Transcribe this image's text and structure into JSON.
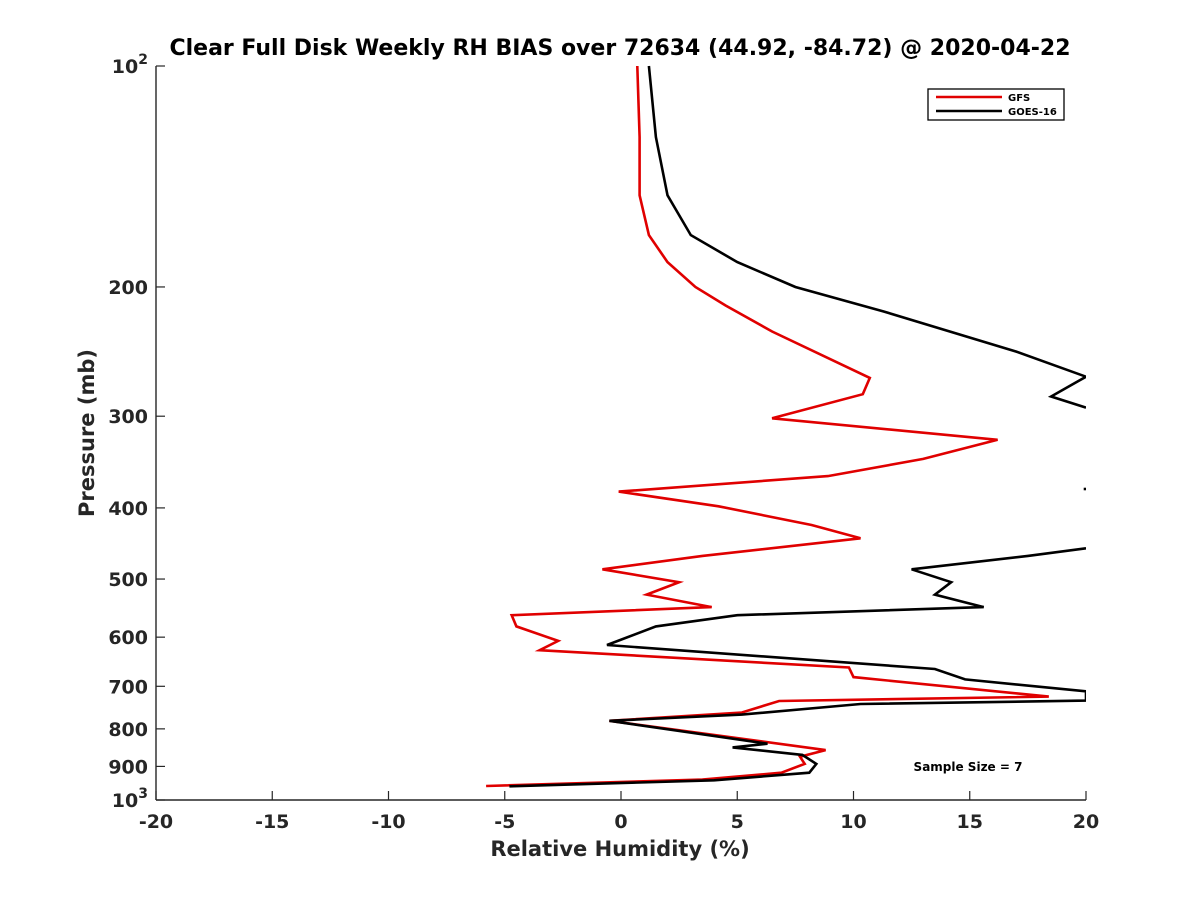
{
  "chart_data": {
    "type": "line",
    "title": "Clear Full Disk Weekly RH BIAS over 72634 (44.92, -84.72) @ 2020-04-22",
    "xlabel": "Relative Humidity (%)",
    "ylabel": "Pressure (mb)",
    "xlim": [
      -20,
      20
    ],
    "ylim": [
      100,
      1000
    ],
    "yscale": "log",
    "y_reversed": true,
    "x_ticks": [
      -20,
      -15,
      -10,
      -5,
      0,
      5,
      10,
      15,
      20
    ],
    "x_tick_labels": [
      "-20",
      "-15",
      "-10",
      "-5",
      "0",
      "5",
      "10",
      "15",
      "20"
    ],
    "y_ticks": [
      100,
      200,
      300,
      400,
      500,
      600,
      700,
      800,
      900,
      1000
    ],
    "y_tick_labels": [
      {
        "base": "10",
        "exp": "2"
      },
      {
        "base": "200",
        "exp": ""
      },
      {
        "base": "300",
        "exp": ""
      },
      {
        "base": "400",
        "exp": ""
      },
      {
        "base": "500",
        "exp": ""
      },
      {
        "base": "600",
        "exp": ""
      },
      {
        "base": "700",
        "exp": ""
      },
      {
        "base": "800",
        "exp": ""
      },
      {
        "base": "900",
        "exp": ""
      },
      {
        "base": "10",
        "exp": "3"
      }
    ],
    "legend_position": "top-right",
    "grid": false,
    "annotation": "Sample Size = 7",
    "series": [
      {
        "name": "GFS",
        "color": "#e00000",
        "points": [
          [
            0.7,
            100
          ],
          [
            0.8,
            125
          ],
          [
            0.8,
            150
          ],
          [
            1.2,
            170
          ],
          [
            2.0,
            185
          ],
          [
            3.2,
            200
          ],
          [
            4.5,
            212
          ],
          [
            6.5,
            230
          ],
          [
            10.7,
            266
          ],
          [
            10.4,
            280
          ],
          [
            6.5,
            302
          ],
          [
            16.2,
            323
          ],
          [
            13.0,
            343
          ],
          [
            8.9,
            362
          ],
          [
            -0.1,
            380
          ],
          [
            4.2,
            398
          ],
          [
            8.2,
            422
          ],
          [
            10.3,
            440
          ],
          [
            3.5,
            465
          ],
          [
            -0.8,
            485
          ],
          [
            2.5,
            505
          ],
          [
            1.1,
            525
          ],
          [
            3.9,
            546
          ],
          [
            -4.7,
            560
          ],
          [
            -4.5,
            580
          ],
          [
            -2.7,
            607
          ],
          [
            -3.5,
            625
          ],
          [
            9.8,
            660
          ],
          [
            10.0,
            680
          ],
          [
            18.4,
            723
          ],
          [
            6.8,
            733
          ],
          [
            5.2,
            760
          ],
          [
            -0.5,
            780
          ],
          [
            8.8,
            855
          ],
          [
            7.7,
            873
          ],
          [
            7.9,
            893
          ],
          [
            6.9,
            918
          ],
          [
            3.5,
            938
          ],
          [
            -5.8,
            957
          ]
        ]
      },
      {
        "name": "GOES-16",
        "color": "#000000",
        "segments": [
          [
            [
              1.2,
              100
            ],
            [
              1.5,
              125
            ],
            [
              2.0,
              150
            ],
            [
              3.0,
              170
            ],
            [
              5.0,
              185
            ],
            [
              7.5,
              200
            ],
            [
              11.3,
              216
            ],
            [
              17.0,
              245
            ],
            [
              20.0,
              265
            ],
            [
              18.5,
              282
            ],
            [
              20.0,
              292
            ]
          ],
          [
            [
              19.9,
              377
            ],
            [
              20.0,
              377
            ]
          ],
          [
            [
              20.0,
              454
            ],
            [
              17.5,
              465
            ],
            [
              12.5,
              485
            ],
            [
              14.2,
              505
            ],
            [
              13.5,
              525
            ],
            [
              15.6,
              546
            ],
            [
              5.0,
              560
            ],
            [
              1.5,
              580
            ],
            [
              -0.6,
              615
            ],
            [
              13.5,
              663
            ],
            [
              14.8,
              685
            ],
            [
              20.0,
              711
            ],
            [
              20.0,
              732
            ],
            [
              10.3,
              740
            ],
            [
              5.2,
              765
            ],
            [
              -0.5,
              780
            ],
            [
              6.3,
              838
            ],
            [
              4.8,
              848
            ],
            [
              7.8,
              868
            ],
            [
              8.4,
              893
            ],
            [
              8.1,
              918
            ],
            [
              4.0,
              940
            ],
            [
              -4.8,
              958
            ]
          ]
        ]
      }
    ]
  }
}
